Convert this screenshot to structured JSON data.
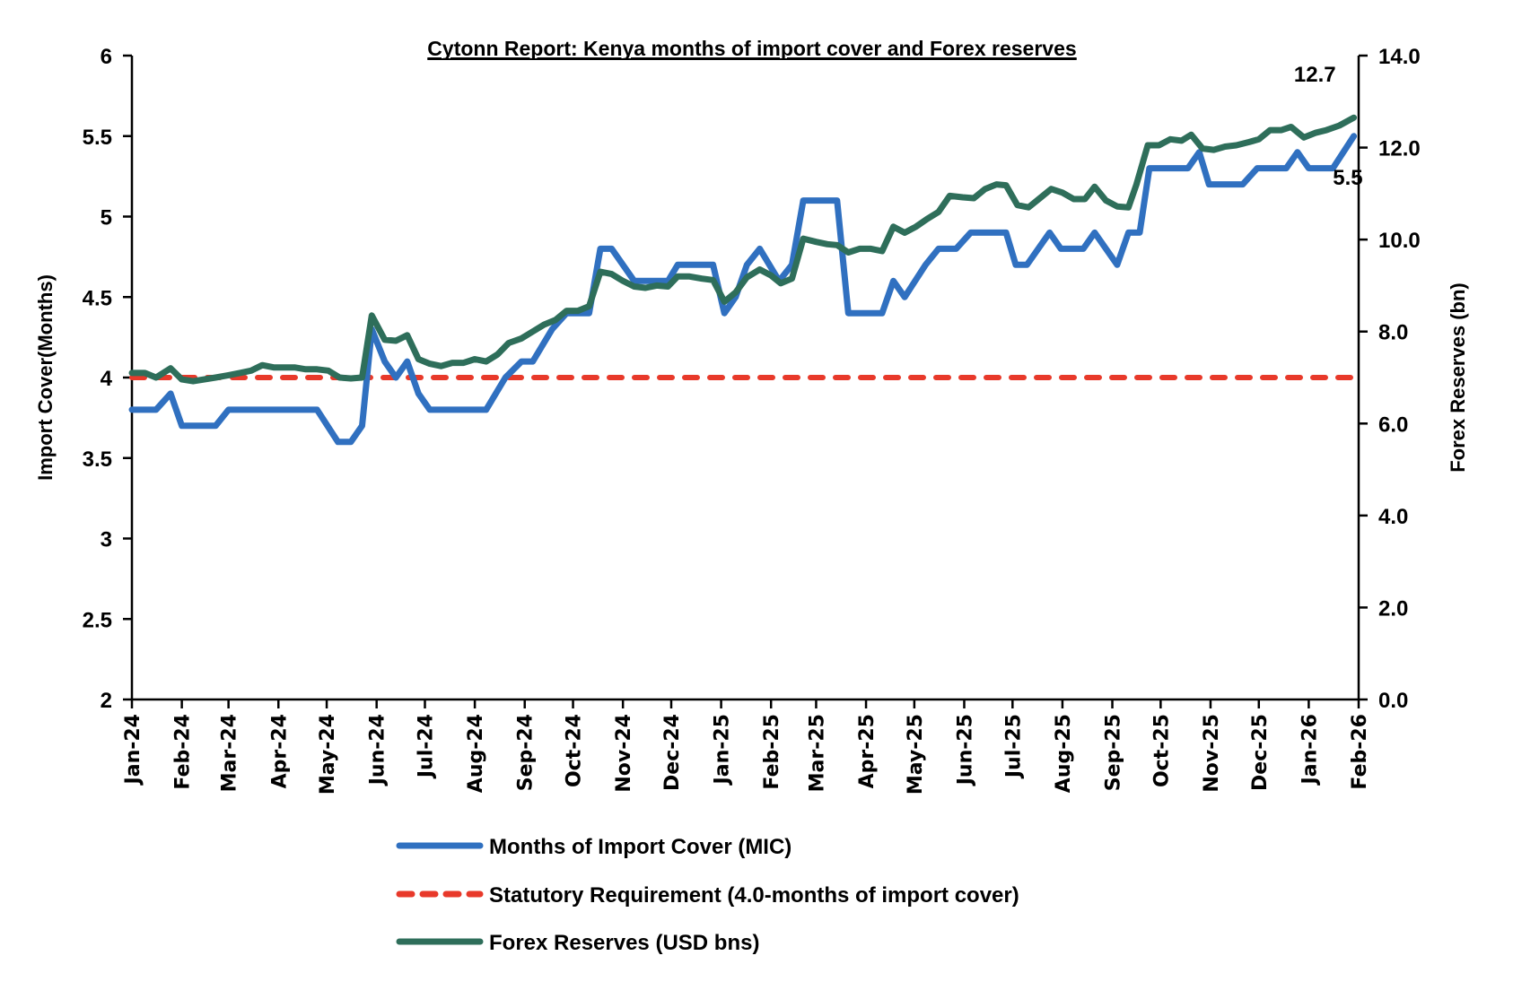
{
  "chart_data": {
    "type": "line",
    "title": "Cytonn Report: Kenya months of import cover and Forex reserves",
    "xlabel": "",
    "ylabel": "Import Cover(Months)",
    "y2label": "Forex Reserves (bn)",
    "ylim": [
      2,
      6
    ],
    "y2lim": [
      0,
      14
    ],
    "yticks": [
      "2",
      "2.5",
      "3",
      "3.5",
      "4",
      "4.5",
      "5",
      "5.5",
      "6"
    ],
    "y2ticks": [
      "0.0",
      "2.0",
      "4.0",
      "6.0",
      "8.0",
      "10.0",
      "12.0",
      "14.0"
    ],
    "x_start": "2024-01-01",
    "x_end": "2026-02-01",
    "xticks": [
      "Jan-24",
      "Feb-24",
      "Mar-24",
      "Apr-24",
      "May-24",
      "Jun-24",
      "Jul-24",
      "Aug-24",
      "Sep-24",
      "Oct-24",
      "Nov-24",
      "Dec-24",
      "Jan-25",
      "Feb-25",
      "Mar-25",
      "Apr-25",
      "May-25",
      "Jun-25",
      "Jul-25",
      "Aug-25",
      "Sep-25",
      "Oct-25",
      "Nov-25",
      "Dec-25",
      "Jan-26",
      "Feb-26"
    ],
    "xtick_dates": [
      "2024-01-01",
      "2024-02-01",
      "2024-03-01",
      "2024-04-01",
      "2024-05-01",
      "2024-06-01",
      "2024-07-01",
      "2024-08-01",
      "2024-09-01",
      "2024-10-01",
      "2024-11-01",
      "2024-12-01",
      "2025-01-01",
      "2025-02-01",
      "2025-03-01",
      "2025-04-01",
      "2025-05-01",
      "2025-06-01",
      "2025-07-01",
      "2025-08-01",
      "2025-09-01",
      "2025-10-01",
      "2025-11-01",
      "2025-12-01",
      "2026-01-01",
      "2026-02-01"
    ],
    "legend_position": "bottom",
    "grid": false,
    "series": [
      {
        "name": "Months of Import Cover (MIC)",
        "axis": "left",
        "color": "#3070C0",
        "style": "solid",
        "end_label": "5.5",
        "points": [
          [
            "2024-01-01",
            3.8
          ],
          [
            "2024-01-09",
            3.8
          ],
          [
            "2024-01-16",
            3.8
          ],
          [
            "2024-01-25",
            3.9
          ],
          [
            "2024-02-01",
            3.7
          ],
          [
            "2024-02-08",
            3.7
          ],
          [
            "2024-02-22",
            3.7
          ],
          [
            "2024-03-01",
            3.8
          ],
          [
            "2024-03-15",
            3.8
          ],
          [
            "2024-03-29",
            3.8
          ],
          [
            "2024-04-11",
            3.8
          ],
          [
            "2024-04-25",
            3.8
          ],
          [
            "2024-05-08",
            3.6
          ],
          [
            "2024-05-16",
            3.6
          ],
          [
            "2024-05-23",
            3.7
          ],
          [
            "2024-05-29",
            4.3
          ],
          [
            "2024-06-06",
            4.1
          ],
          [
            "2024-06-13",
            4.0
          ],
          [
            "2024-06-20",
            4.1
          ],
          [
            "2024-06-27",
            3.9
          ],
          [
            "2024-07-04",
            3.8
          ],
          [
            "2024-07-18",
            3.8
          ],
          [
            "2024-08-01",
            3.8
          ],
          [
            "2024-08-08",
            3.8
          ],
          [
            "2024-08-20",
            4.0
          ],
          [
            "2024-08-30",
            4.1
          ],
          [
            "2024-09-06",
            4.1
          ],
          [
            "2024-09-18",
            4.3
          ],
          [
            "2024-09-27",
            4.4
          ],
          [
            "2024-10-11",
            4.4
          ],
          [
            "2024-10-18",
            4.8
          ],
          [
            "2024-10-25",
            4.8
          ],
          [
            "2024-11-08",
            4.6
          ],
          [
            "2024-11-22",
            4.6
          ],
          [
            "2024-11-29",
            4.6
          ],
          [
            "2024-12-05",
            4.7
          ],
          [
            "2024-12-27",
            4.7
          ],
          [
            "2025-01-03",
            4.4
          ],
          [
            "2025-01-10",
            4.5
          ],
          [
            "2025-01-17",
            4.7
          ],
          [
            "2025-01-25",
            4.8
          ],
          [
            "2025-02-06",
            4.6
          ],
          [
            "2025-02-14",
            4.7
          ],
          [
            "2025-02-21",
            5.1
          ],
          [
            "2025-03-14",
            5.1
          ],
          [
            "2025-03-21",
            4.4
          ],
          [
            "2025-04-11",
            4.4
          ],
          [
            "2025-04-18",
            4.6
          ],
          [
            "2025-04-25",
            4.5
          ],
          [
            "2025-05-08",
            4.7
          ],
          [
            "2025-05-16",
            4.8
          ],
          [
            "2025-05-27",
            4.8
          ],
          [
            "2025-06-05",
            4.9
          ],
          [
            "2025-06-27",
            4.9
          ],
          [
            "2025-07-03",
            4.7
          ],
          [
            "2025-07-10",
            4.7
          ],
          [
            "2025-07-24",
            4.9
          ],
          [
            "2025-07-31",
            4.8
          ],
          [
            "2025-08-14",
            4.8
          ],
          [
            "2025-08-21",
            4.9
          ],
          [
            "2025-09-04",
            4.7
          ],
          [
            "2025-09-11",
            4.9
          ],
          [
            "2025-09-18",
            4.9
          ],
          [
            "2025-09-24",
            5.3
          ],
          [
            "2025-10-18",
            5.3
          ],
          [
            "2025-10-25",
            5.4
          ],
          [
            "2025-10-31",
            5.2
          ],
          [
            "2025-11-21",
            5.2
          ],
          [
            "2025-11-30",
            5.3
          ],
          [
            "2025-12-18",
            5.3
          ],
          [
            "2025-12-25",
            5.4
          ],
          [
            "2026-01-01",
            5.3
          ],
          [
            "2026-01-16",
            5.3
          ],
          [
            "2026-01-29",
            5.5
          ]
        ]
      },
      {
        "name": "Statutory Requirement (4.0-months of import cover)",
        "axis": "left",
        "color": "#E8392A",
        "style": "dashed",
        "points": [
          [
            "2024-01-01",
            4.0
          ],
          [
            "2026-01-29",
            4.0
          ]
        ]
      },
      {
        "name": "Forex Reserves (USD bns)",
        "axis": "right",
        "color": "#2E6E5A",
        "style": "solid",
        "end_label": "12.7",
        "points": [
          [
            "2024-01-01",
            7.1
          ],
          [
            "2024-01-09",
            7.1
          ],
          [
            "2024-01-16",
            7.0
          ],
          [
            "2024-01-25",
            7.2
          ],
          [
            "2024-02-01",
            6.96
          ],
          [
            "2024-02-08",
            6.92
          ],
          [
            "2024-02-22",
            7.0
          ],
          [
            "2024-03-01",
            7.05
          ],
          [
            "2024-03-08",
            7.1
          ],
          [
            "2024-03-15",
            7.15
          ],
          [
            "2024-03-22",
            7.27
          ],
          [
            "2024-03-29",
            7.22
          ],
          [
            "2024-04-11",
            7.22
          ],
          [
            "2024-04-18",
            7.18
          ],
          [
            "2024-04-25",
            7.18
          ],
          [
            "2024-05-02",
            7.15
          ],
          [
            "2024-05-09",
            7.0
          ],
          [
            "2024-05-16",
            6.98
          ],
          [
            "2024-05-23",
            7.0
          ],
          [
            "2024-05-29",
            8.35
          ],
          [
            "2024-06-06",
            7.82
          ],
          [
            "2024-06-13",
            7.8
          ],
          [
            "2024-06-20",
            7.92
          ],
          [
            "2024-06-27",
            7.4
          ],
          [
            "2024-07-04",
            7.3
          ],
          [
            "2024-07-11",
            7.25
          ],
          [
            "2024-07-18",
            7.32
          ],
          [
            "2024-07-25",
            7.32
          ],
          [
            "2024-08-01",
            7.4
          ],
          [
            "2024-08-08",
            7.35
          ],
          [
            "2024-08-15",
            7.5
          ],
          [
            "2024-08-22",
            7.75
          ],
          [
            "2024-08-30",
            7.85
          ],
          [
            "2024-09-06",
            8.0
          ],
          [
            "2024-09-13",
            8.15
          ],
          [
            "2024-09-20",
            8.25
          ],
          [
            "2024-09-27",
            8.45
          ],
          [
            "2024-10-04",
            8.45
          ],
          [
            "2024-10-11",
            8.55
          ],
          [
            "2024-10-18",
            9.3
          ],
          [
            "2024-10-25",
            9.25
          ],
          [
            "2024-11-01",
            9.1
          ],
          [
            "2024-11-08",
            8.98
          ],
          [
            "2024-11-15",
            8.95
          ],
          [
            "2024-11-22",
            9.0
          ],
          [
            "2024-11-29",
            8.98
          ],
          [
            "2024-12-05",
            9.2
          ],
          [
            "2024-12-12",
            9.2
          ],
          [
            "2024-12-20",
            9.15
          ],
          [
            "2024-12-27",
            9.12
          ],
          [
            "2025-01-03",
            8.65
          ],
          [
            "2025-01-10",
            8.85
          ],
          [
            "2025-01-17",
            9.18
          ],
          [
            "2025-01-25",
            9.35
          ],
          [
            "2025-02-01",
            9.22
          ],
          [
            "2025-02-07",
            9.05
          ],
          [
            "2025-02-14",
            9.15
          ],
          [
            "2025-02-21",
            10.02
          ],
          [
            "2025-03-01",
            9.95
          ],
          [
            "2025-03-08",
            9.9
          ],
          [
            "2025-03-14",
            9.88
          ],
          [
            "2025-03-21",
            9.72
          ],
          [
            "2025-03-28",
            9.8
          ],
          [
            "2025-04-04",
            9.8
          ],
          [
            "2025-04-11",
            9.75
          ],
          [
            "2025-04-18",
            10.28
          ],
          [
            "2025-04-25",
            10.15
          ],
          [
            "2025-05-02",
            10.28
          ],
          [
            "2025-05-09",
            10.45
          ],
          [
            "2025-05-16",
            10.6
          ],
          [
            "2025-05-23",
            10.95
          ],
          [
            "2025-05-31",
            10.92
          ],
          [
            "2025-06-07",
            10.9
          ],
          [
            "2025-06-14",
            11.1
          ],
          [
            "2025-06-21",
            11.2
          ],
          [
            "2025-06-27",
            11.18
          ],
          [
            "2025-07-04",
            10.75
          ],
          [
            "2025-07-11",
            10.7
          ],
          [
            "2025-07-18",
            10.9
          ],
          [
            "2025-07-25",
            11.1
          ],
          [
            "2025-08-01",
            11.02
          ],
          [
            "2025-08-08",
            10.88
          ],
          [
            "2025-08-15",
            10.88
          ],
          [
            "2025-08-21",
            11.15
          ],
          [
            "2025-08-28",
            10.85
          ],
          [
            "2025-09-04",
            10.72
          ],
          [
            "2025-09-11",
            10.7
          ],
          [
            "2025-09-16",
            11.2
          ],
          [
            "2025-09-23",
            12.05
          ],
          [
            "2025-09-30",
            12.05
          ],
          [
            "2025-10-07",
            12.18
          ],
          [
            "2025-10-14",
            12.15
          ],
          [
            "2025-10-20",
            12.28
          ],
          [
            "2025-10-27",
            11.98
          ],
          [
            "2025-11-03",
            11.95
          ],
          [
            "2025-11-10",
            12.02
          ],
          [
            "2025-11-17",
            12.05
          ],
          [
            "2025-11-25",
            12.12
          ],
          [
            "2025-12-01",
            12.18
          ],
          [
            "2025-12-08",
            12.38
          ],
          [
            "2025-12-15",
            12.38
          ],
          [
            "2025-12-21",
            12.45
          ],
          [
            "2025-12-29",
            12.22
          ],
          [
            "2026-01-05",
            12.32
          ],
          [
            "2026-01-12",
            12.38
          ],
          [
            "2026-01-20",
            12.48
          ],
          [
            "2026-01-29",
            12.65
          ]
        ]
      }
    ]
  }
}
